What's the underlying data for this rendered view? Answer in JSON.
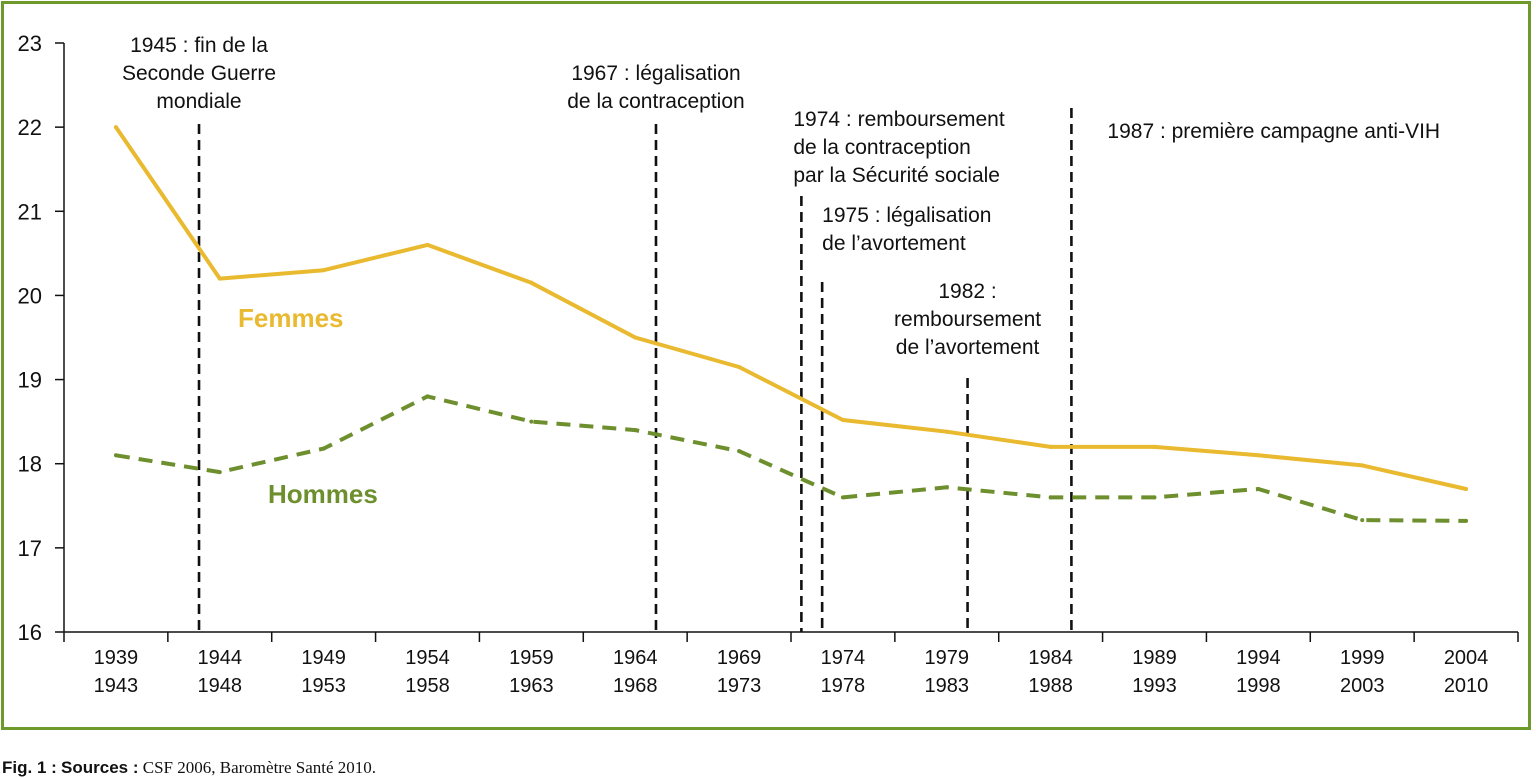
{
  "chart_data": {
    "type": "line",
    "ylim": [
      16,
      23
    ],
    "yticks": [
      16,
      17,
      18,
      19,
      20,
      21,
      22,
      23
    ],
    "categories": [
      [
        "1939",
        "1943"
      ],
      [
        "1944",
        "1948"
      ],
      [
        "1949",
        "1953"
      ],
      [
        "1954",
        "1958"
      ],
      [
        "1959",
        "1963"
      ],
      [
        "1964",
        "1968"
      ],
      [
        "1969",
        "1973"
      ],
      [
        "1974",
        "1978"
      ],
      [
        "1979",
        "1983"
      ],
      [
        "1984",
        "1988"
      ],
      [
        "1989",
        "1993"
      ],
      [
        "1994",
        "1998"
      ],
      [
        "1999",
        "2003"
      ],
      [
        "2004",
        "2010"
      ]
    ],
    "series": [
      {
        "name": "Femmes",
        "color": "#e9b930",
        "style": "solid",
        "values": [
          22.0,
          20.2,
          20.3,
          20.6,
          20.15,
          19.5,
          19.15,
          18.52,
          18.38,
          18.2,
          18.2,
          18.1,
          17.98,
          17.7
        ]
      },
      {
        "name": "Hommes",
        "color": "#6e8f2e",
        "style": "dashed",
        "values": [
          18.1,
          17.9,
          18.18,
          18.8,
          18.5,
          18.4,
          18.15,
          17.6,
          17.72,
          17.6,
          17.6,
          17.7,
          17.33,
          17.32
        ]
      }
    ],
    "events": [
      {
        "year": 1945,
        "label": [
          "1945 : fin de la",
          "Seconde Guerre",
          "mondiale"
        ]
      },
      {
        "year": 1967,
        "label": [
          "1967 : légalisation",
          "de la contraception"
        ]
      },
      {
        "year": 1974,
        "label": [
          "1974 : remboursement",
          "de la contraception",
          "par la Sécurité sociale"
        ]
      },
      {
        "year": 1975,
        "label": [
          "1975 : légalisation",
          "de l’avortement"
        ]
      },
      {
        "year": 1982,
        "label": [
          "1982 :",
          "remboursement",
          "de l’avortement"
        ]
      },
      {
        "year": 1987,
        "label": [
          "1987 : première campagne anti-VIH"
        ]
      }
    ]
  },
  "caption": {
    "fig": "Fig. 1 :",
    "sources_label": "Sources :",
    "text": "CSF 2006, Baromètre Santé 2010."
  }
}
